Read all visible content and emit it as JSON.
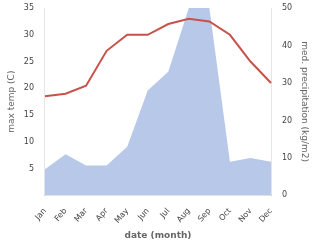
{
  "chart_data": {
    "type": "line",
    "categories": [
      "Jan",
      "Feb",
      "Mar",
      "Apr",
      "May",
      "Jun",
      "Jul",
      "Aug",
      "Sep",
      "Oct",
      "Nov",
      "Dec"
    ],
    "xlabel": "date (month)",
    "ylabel": "max temp (C)",
    "y2label": "med. precipitation (kg/m2)",
    "series": [
      {
        "type": "area",
        "axis": "y2",
        "color": "#b8c8e8",
        "values": [
          7,
          11,
          8,
          8,
          13,
          28,
          33,
          50,
          50,
          9,
          10,
          9
        ]
      },
      {
        "type": "line",
        "color": "#c8524a",
        "values": [
          18.5,
          19.0,
          20.5,
          27.0,
          30.0,
          30.0,
          32.0,
          33.0,
          32.5,
          30.0,
          25.0,
          21.0
        ]
      }
    ],
    "ylim": [
      0,
      35
    ],
    "yticks": [
      5,
      10,
      15,
      20,
      25,
      30,
      35
    ],
    "y2lim": [
      0,
      50
    ],
    "y2ticks": [
      0,
      10,
      20,
      30,
      40,
      50
    ],
    "grid": false
  }
}
